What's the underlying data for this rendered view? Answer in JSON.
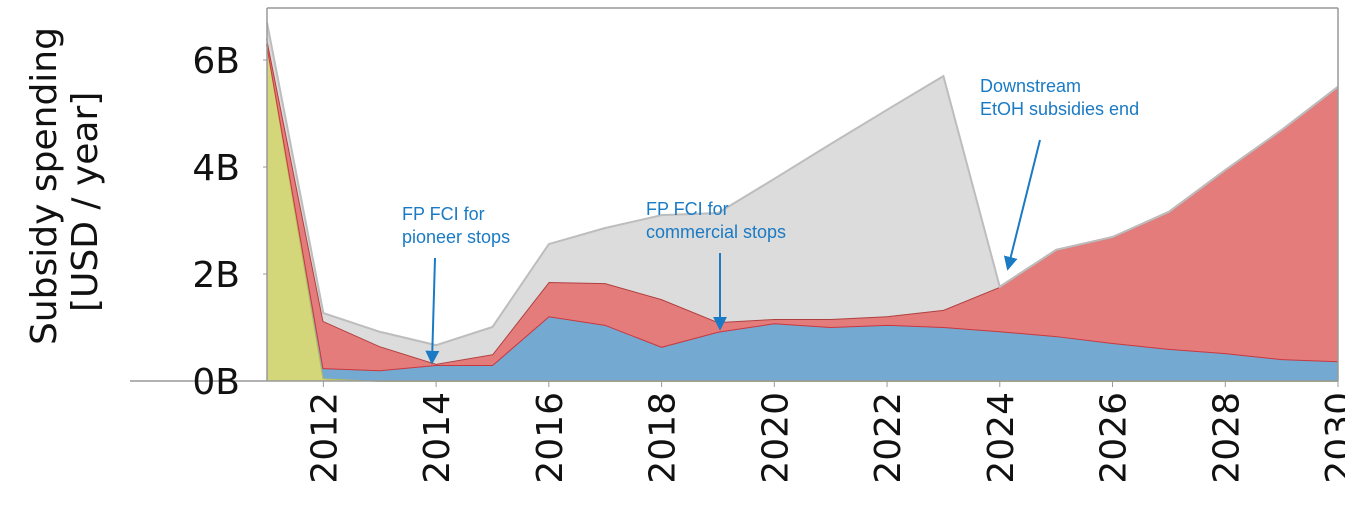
{
  "chart_data": {
    "type": "stacked_area",
    "y_label_lines": [
      "Subsidy spending",
      "[USD / year]"
    ],
    "x": [
      2011,
      2012,
      2013,
      2014,
      2015,
      2016,
      2017,
      2018,
      2019,
      2020,
      2021,
      2022,
      2023,
      2024,
      2025,
      2026,
      2027,
      2028,
      2029,
      2030
    ],
    "series": [
      {
        "color": "#d4d67a",
        "line": "#b8ba5a",
        "values": [
          6.3,
          0.05,
          0,
          0,
          0,
          0,
          0,
          0,
          0,
          0,
          0,
          0,
          0,
          0,
          0,
          0,
          0,
          0,
          0,
          0
        ]
      },
      {
        "color": "#74aad1",
        "line": "#c8383f",
        "values": [
          0,
          0.19,
          0.2,
          0.3,
          0.3,
          1.21,
          1.05,
          0.64,
          0.92,
          1.08,
          1.01,
          1.05,
          1.01,
          0.93,
          0.84,
          0.71,
          0.6,
          0.52,
          0.41,
          0.37
        ]
      },
      {
        "color": "#e57c7c",
        "line": "#b04040",
        "values": [
          0.1,
          0.88,
          0.45,
          0.02,
          0.2,
          0.64,
          0.78,
          0.89,
          0.18,
          0.08,
          0.15,
          0.16,
          0.32,
          0.83,
          1.61,
          1.98,
          2.56,
          3.42,
          4.28,
          5.13
        ]
      },
      {
        "color": "#dcdcdc",
        "line": "#bdbdbd",
        "values": [
          0.3,
          0.15,
          0.27,
          0.35,
          0.51,
          0.71,
          1.03,
          1.57,
          2.04,
          2.62,
          3.27,
          3.86,
          4.37,
          0,
          0,
          0,
          0,
          0,
          0,
          0
        ]
      }
    ],
    "xlim": [
      2011,
      2030
    ],
    "xticks": [
      2012,
      2014,
      2016,
      2018,
      2020,
      2022,
      2024,
      2026,
      2028,
      2030
    ],
    "ylim": [
      0,
      6.5
    ],
    "yticks": [
      {
        "value": 0,
        "label": "0B"
      },
      {
        "value": 2,
        "label": "2B"
      },
      {
        "value": 4,
        "label": "4B"
      },
      {
        "value": 6,
        "label": "6B"
      }
    ],
    "annotations": [
      {
        "lines": [
          "FP FCI for",
          "pioneer stops"
        ]
      },
      {
        "lines": [
          "FP FCI for",
          "commercial stops"
        ]
      },
      {
        "lines": [
          "Downstream",
          "EtOH subsidies end"
        ]
      }
    ]
  }
}
